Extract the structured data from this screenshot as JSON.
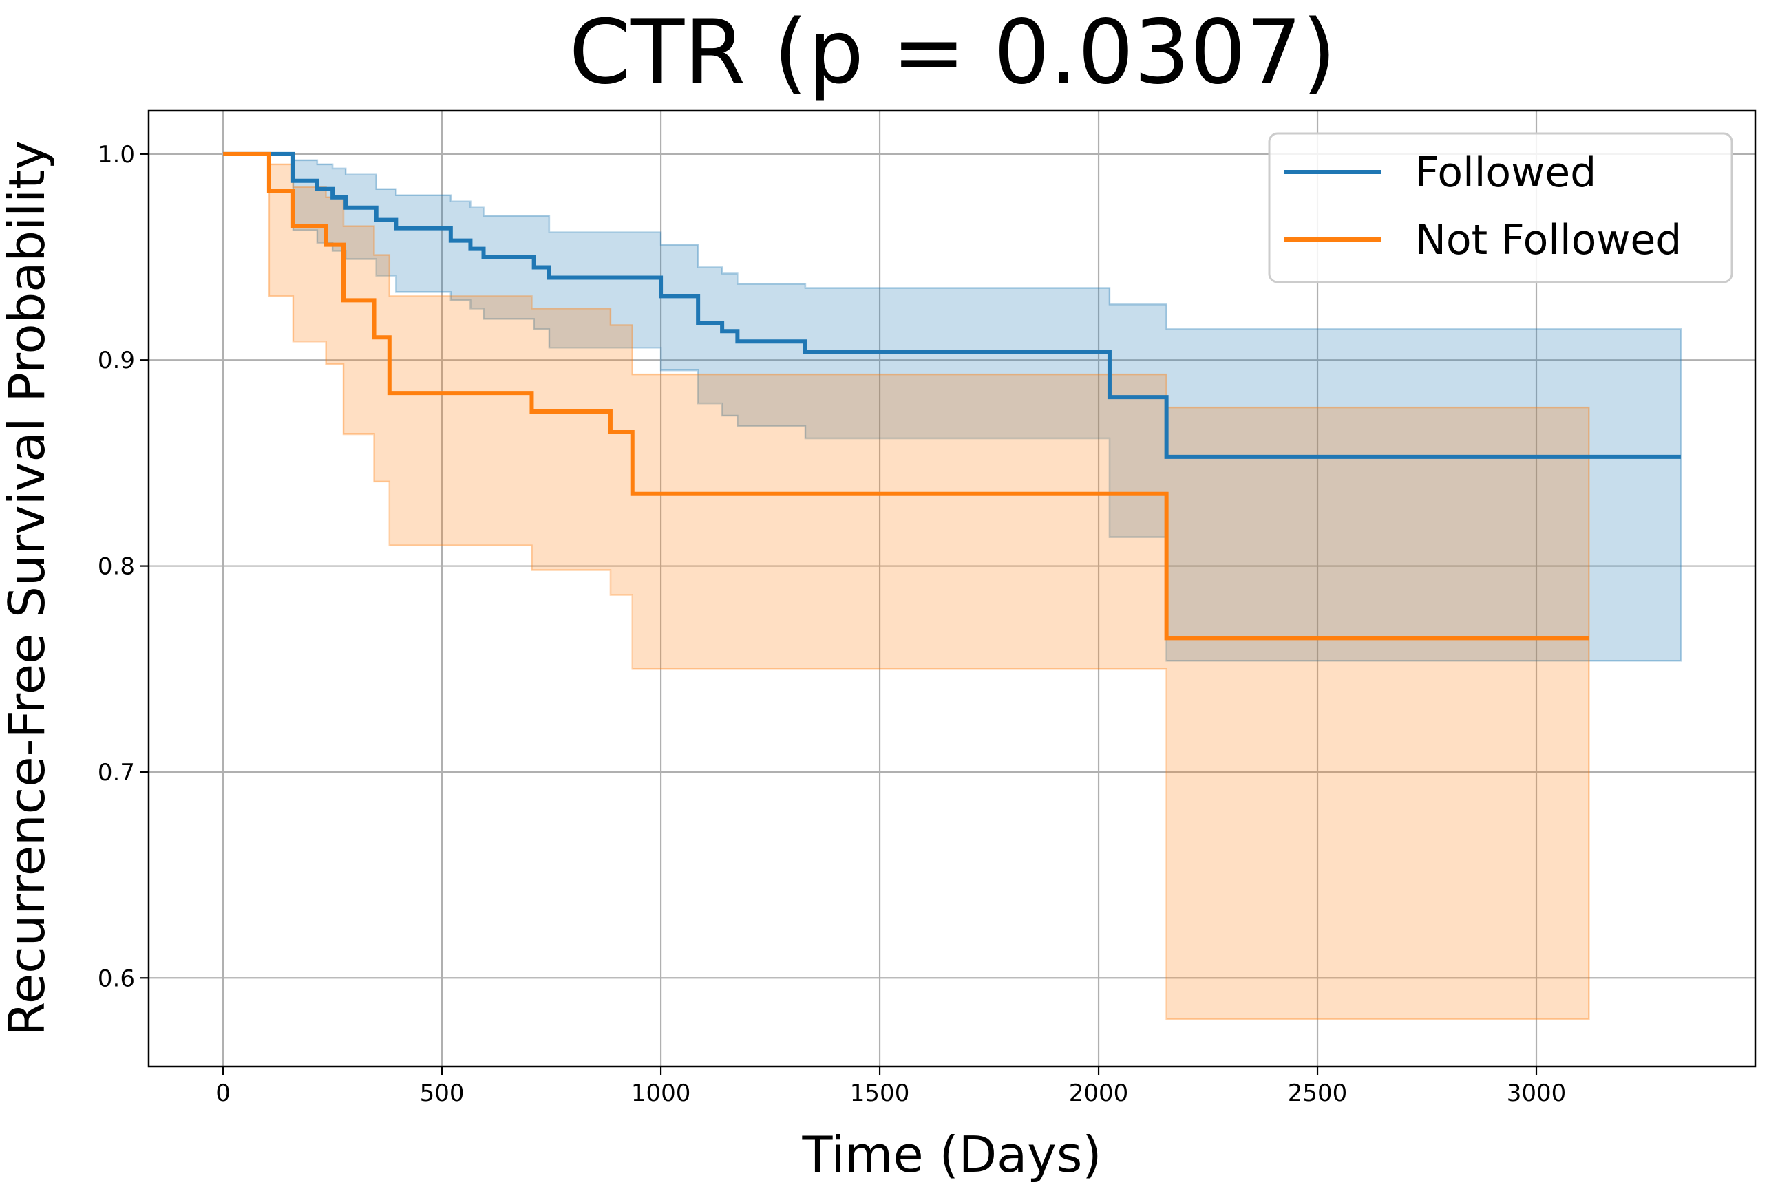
{
  "chart_data": {
    "type": "line",
    "title": "CTR (p = 0.0307)",
    "xlabel": "Time (Days)",
    "ylabel": "Recurrence-Free Survival Probability",
    "xlim": [
      -170,
      3500
    ],
    "ylim": [
      0.557,
      1.021
    ],
    "xticks": [
      0,
      500,
      1000,
      1500,
      2000,
      2500,
      3000
    ],
    "yticks": [
      0.6,
      0.7,
      0.8,
      0.9,
      1.0
    ],
    "xtick_labels": [
      "0",
      "500",
      "1000",
      "1500",
      "2000",
      "2500",
      "3000"
    ],
    "ytick_labels": [
      "0.6",
      "0.7",
      "0.8",
      "0.9",
      "1.0"
    ],
    "grid": true,
    "legend": "top-right",
    "series": [
      {
        "name": "Followed",
        "color": "#1f77b4",
        "steps": [
          [
            0,
            1.0
          ],
          [
            160,
            0.987
          ],
          [
            215,
            0.983
          ],
          [
            250,
            0.979
          ],
          [
            280,
            0.974
          ],
          [
            350,
            0.968
          ],
          [
            395,
            0.964
          ],
          [
            520,
            0.958
          ],
          [
            565,
            0.954
          ],
          [
            595,
            0.95
          ],
          [
            710,
            0.945
          ],
          [
            745,
            0.94
          ],
          [
            1000,
            0.931
          ],
          [
            1085,
            0.918
          ],
          [
            1140,
            0.914
          ],
          [
            1175,
            0.909
          ],
          [
            1330,
            0.904
          ],
          [
            2025,
            0.882
          ],
          [
            2155,
            0.853
          ],
          [
            3330,
            0.853
          ]
        ],
        "ci_upper": [
          [
            0,
            1.0
          ],
          [
            160,
            0.997
          ],
          [
            215,
            0.995
          ],
          [
            250,
            0.993
          ],
          [
            280,
            0.99
          ],
          [
            350,
            0.983
          ],
          [
            395,
            0.98
          ],
          [
            520,
            0.977
          ],
          [
            565,
            0.974
          ],
          [
            595,
            0.97
          ],
          [
            710,
            0.97
          ],
          [
            745,
            0.962
          ],
          [
            1000,
            0.956
          ],
          [
            1085,
            0.945
          ],
          [
            1140,
            0.942
          ],
          [
            1175,
            0.937
          ],
          [
            1330,
            0.935
          ],
          [
            2025,
            0.927
          ],
          [
            2155,
            0.915
          ],
          [
            3330,
            0.915
          ]
        ],
        "ci_lower": [
          [
            0,
            1.0
          ],
          [
            160,
            0.963
          ],
          [
            215,
            0.957
          ],
          [
            250,
            0.953
          ],
          [
            280,
            0.949
          ],
          [
            350,
            0.941
          ],
          [
            395,
            0.933
          ],
          [
            520,
            0.929
          ],
          [
            565,
            0.925
          ],
          [
            595,
            0.92
          ],
          [
            710,
            0.915
          ],
          [
            745,
            0.906
          ],
          [
            1000,
            0.895
          ],
          [
            1085,
            0.879
          ],
          [
            1140,
            0.873
          ],
          [
            1175,
            0.868
          ],
          [
            1330,
            0.862
          ],
          [
            2025,
            0.814
          ],
          [
            2155,
            0.754
          ],
          [
            3330,
            0.754
          ]
        ]
      },
      {
        "name": "Not Followed",
        "color": "#ff7f0e",
        "steps": [
          [
            0,
            1.0
          ],
          [
            105,
            0.982
          ],
          [
            160,
            0.965
          ],
          [
            235,
            0.956
          ],
          [
            275,
            0.929
          ],
          [
            345,
            0.911
          ],
          [
            380,
            0.884
          ],
          [
            705,
            0.875
          ],
          [
            885,
            0.865
          ],
          [
            935,
            0.835
          ],
          [
            2155,
            0.765
          ],
          [
            3120,
            0.765
          ]
        ],
        "ci_upper": [
          [
            0,
            1.0
          ],
          [
            105,
            0.995
          ],
          [
            160,
            0.984
          ],
          [
            235,
            0.979
          ],
          [
            275,
            0.965
          ],
          [
            345,
            0.951
          ],
          [
            380,
            0.931
          ],
          [
            705,
            0.925
          ],
          [
            885,
            0.917
          ],
          [
            935,
            0.893
          ],
          [
            2155,
            0.877
          ],
          [
            3120,
            0.877
          ]
        ],
        "ci_lower": [
          [
            0,
            1.0
          ],
          [
            105,
            0.931
          ],
          [
            160,
            0.909
          ],
          [
            235,
            0.898
          ],
          [
            275,
            0.864
          ],
          [
            345,
            0.841
          ],
          [
            380,
            0.81
          ],
          [
            705,
            0.798
          ],
          [
            885,
            0.786
          ],
          [
            935,
            0.75
          ],
          [
            2155,
            0.58
          ],
          [
            3120,
            0.58
          ]
        ]
      }
    ]
  }
}
